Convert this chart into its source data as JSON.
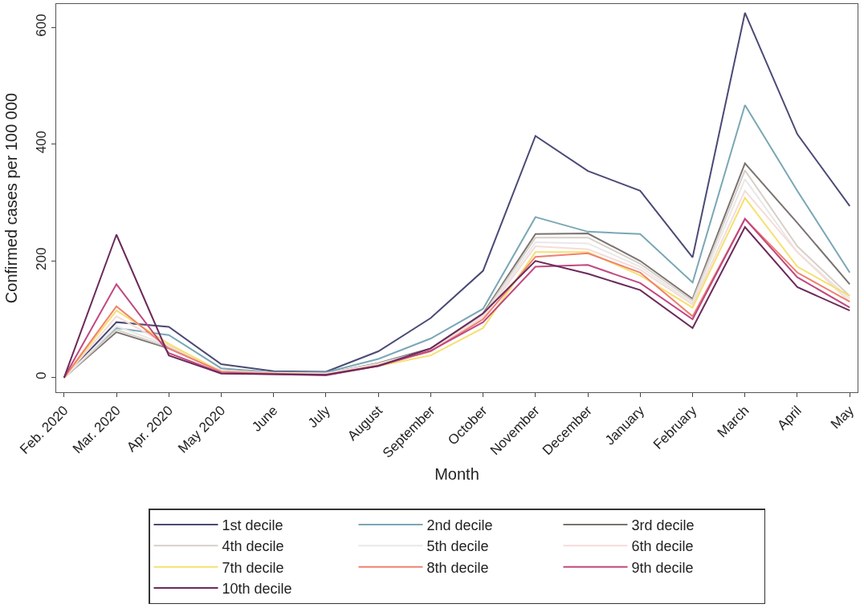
{
  "chart_data": {
    "type": "line",
    "xlabel": "Month",
    "ylabel": "Confirmed cases per 100 000",
    "categories": [
      "Feb. 2020",
      "Mar. 2020",
      "Apr. 2020",
      "May 2020",
      "June",
      "July",
      "August",
      "September",
      "October",
      "November",
      "December",
      "January",
      "February",
      "March",
      "April",
      "May"
    ],
    "ylim": [
      -25,
      640
    ],
    "yticks": [
      0,
      200,
      400,
      600
    ],
    "legend": "bottom",
    "marker": "none",
    "line_style": "solid",
    "series": [
      {
        "name": "1st decile",
        "color": "#4a4a75",
        "values": [
          0,
          95,
          87,
          23,
          11,
          10,
          45,
          102,
          183,
          414,
          354,
          320,
          206,
          625,
          417,
          294
        ]
      },
      {
        "name": "2nd decile",
        "color": "#7aa7b5",
        "values": [
          0,
          85,
          73,
          16,
          9,
          9,
          32,
          67,
          118,
          275,
          250,
          246,
          163,
          467,
          320,
          180
        ]
      },
      {
        "name": "3rd decile",
        "color": "#7a7370",
        "values": [
          0,
          78,
          50,
          12,
          8,
          7,
          25,
          50,
          110,
          246,
          247,
          200,
          135,
          367,
          265,
          160
        ]
      },
      {
        "name": "4th decile",
        "color": "#d8d0c8",
        "values": [
          0,
          82,
          52,
          12,
          8,
          7,
          24,
          48,
          108,
          240,
          240,
          195,
          132,
          355,
          225,
          140
        ]
      },
      {
        "name": "5th decile",
        "color": "#e8e8e8",
        "values": [
          0,
          88,
          55,
          12,
          8,
          7,
          23,
          47,
          105,
          232,
          230,
          190,
          128,
          340,
          215,
          135
        ]
      },
      {
        "name": "6th decile",
        "color": "#f5dcd8",
        "values": [
          0,
          105,
          55,
          11,
          8,
          6,
          22,
          46,
          103,
          225,
          220,
          185,
          125,
          320,
          215,
          130
        ]
      },
      {
        "name": "7th decile",
        "color": "#f5e070",
        "values": [
          0,
          115,
          58,
          10,
          7,
          5,
          20,
          38,
          85,
          215,
          215,
          175,
          120,
          308,
          190,
          140
        ]
      },
      {
        "name": "8th decile",
        "color": "#f08070",
        "values": [
          0,
          122,
          50,
          10,
          7,
          5,
          21,
          45,
          100,
          207,
          213,
          180,
          105,
          272,
          180,
          130
        ]
      },
      {
        "name": "9th decile",
        "color": "#c04880",
        "values": [
          0,
          160,
          42,
          8,
          6,
          4,
          20,
          46,
          95,
          190,
          193,
          162,
          100,
          272,
          172,
          120
        ]
      },
      {
        "name": "10th decile",
        "color": "#6a2a5a",
        "values": [
          0,
          245,
          38,
          7,
          6,
          5,
          20,
          50,
          110,
          200,
          178,
          150,
          85,
          258,
          155,
          115
        ]
      }
    ]
  }
}
